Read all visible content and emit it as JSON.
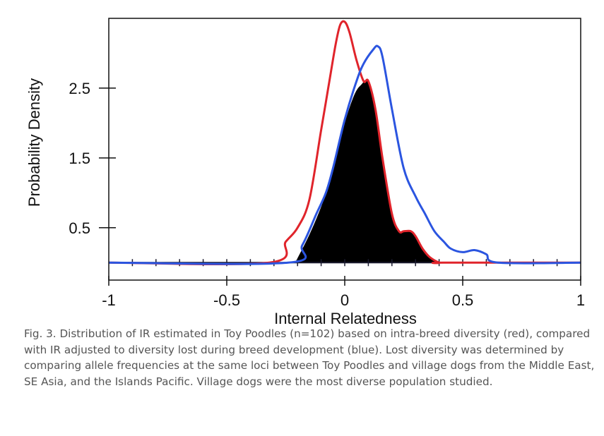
{
  "chart_data": {
    "type": "area",
    "xlabel": "Internal Relatedness",
    "ylabel": "Probability Density",
    "xlim": [
      -1,
      1
    ],
    "ylim": [
      -0.25,
      3.5
    ],
    "x_ticks": [
      "-1",
      "-0.5",
      "0",
      "0.5",
      "1"
    ],
    "x_tick_values": [
      -1,
      -0.5,
      0,
      0.5,
      1
    ],
    "y_ticks": [
      "0.5",
      "1.5",
      "2.5"
    ],
    "y_tick_values": [
      0.5,
      1.5,
      2.5
    ],
    "grid": false,
    "series": [
      {
        "color": "#e0242b",
        "x": [
          -1.0,
          -0.32,
          -0.25,
          -0.2,
          -0.15,
          -0.1,
          -0.07,
          -0.04,
          -0.02,
          0.0,
          0.02,
          0.05,
          0.08,
          0.1,
          0.13,
          0.16,
          0.2,
          0.23,
          0.25,
          0.28,
          0.3,
          0.33,
          0.36,
          0.4,
          0.42,
          1.0
        ],
        "y": [
          0.0,
          0.0,
          0.3,
          0.5,
          0.9,
          1.9,
          2.5,
          3.1,
          3.4,
          3.45,
          3.3,
          2.9,
          2.6,
          2.6,
          2.2,
          1.5,
          0.7,
          0.45,
          0.45,
          0.45,
          0.38,
          0.2,
          0.08,
          0.0,
          0.0,
          0.0
        ]
      },
      {
        "color": "#2b55e0",
        "x": [
          -1.0,
          -0.24,
          -0.18,
          -0.12,
          -0.08,
          -0.05,
          0.0,
          0.05,
          0.08,
          0.12,
          0.14,
          0.16,
          0.2,
          0.25,
          0.3,
          0.34,
          0.38,
          0.42,
          0.45,
          0.5,
          0.55,
          0.6,
          0.65,
          1.0
        ],
        "y": [
          0.0,
          0.0,
          0.25,
          0.7,
          1.0,
          1.35,
          2.05,
          2.6,
          2.85,
          3.05,
          3.1,
          2.95,
          2.2,
          1.35,
          0.95,
          0.7,
          0.45,
          0.3,
          0.2,
          0.15,
          0.18,
          0.12,
          0.0,
          0.0
        ]
      }
    ],
    "filled_region": {
      "color": "#000000",
      "x": [
        -0.21,
        -0.15,
        -0.1,
        -0.07,
        -0.04,
        0.0,
        0.04,
        0.07,
        0.1,
        0.13,
        0.16,
        0.2,
        0.23,
        0.25,
        0.28,
        0.3,
        0.33,
        0.36,
        0.4
      ],
      "y": [
        0.0,
        0.4,
        0.8,
        1.1,
        1.45,
        2.0,
        2.4,
        2.55,
        2.6,
        2.2,
        1.5,
        0.7,
        0.45,
        0.45,
        0.45,
        0.38,
        0.2,
        0.08,
        0.0
      ]
    }
  },
  "caption": "Fig. 3. Distribution of IR estimated in Toy Poodles (n=102) based on intra-breed diversity (red), compared with IR adjusted to diversity lost during breed development (blue). Lost diversity was determined by comparing allele frequencies at the same loci between Toy Poodles and village dogs from the Middle East, SE Asia, and the Islands Pacific. Village dogs were the most diverse population studied."
}
